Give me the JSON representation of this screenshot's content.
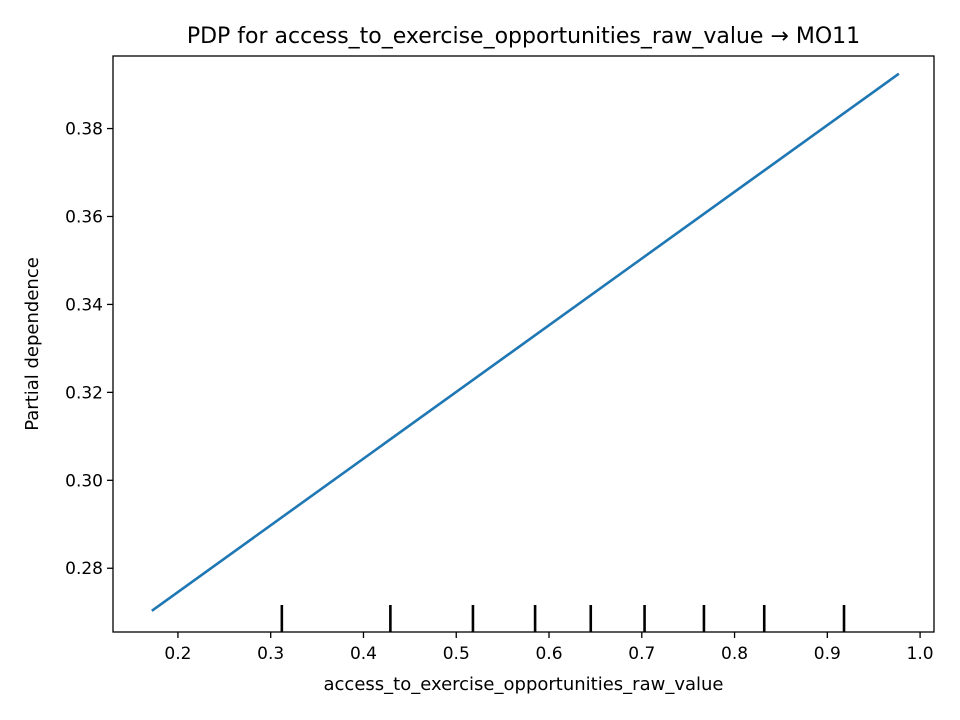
{
  "chart_data": {
    "type": "line",
    "title": "PDP for access_to_exercise_opportunities_raw_value → MO11",
    "xlabel": "access_to_exercise_opportunities_raw_value",
    "ylabel": "Partial dependence",
    "xlim": [
      0.13,
      1.015
    ],
    "ylim": [
      0.2655,
      0.3965
    ],
    "x_ticks": [
      0.2,
      0.3,
      0.4,
      0.5,
      0.6,
      0.7,
      0.8,
      0.9,
      1.0
    ],
    "x_tick_labels": [
      "0.2",
      "0.3",
      "0.4",
      "0.5",
      "0.6",
      "0.7",
      "0.8",
      "0.9",
      "1.0"
    ],
    "y_ticks": [
      0.28,
      0.3,
      0.32,
      0.34,
      0.36,
      0.38
    ],
    "y_tick_labels": [
      "0.28",
      "0.30",
      "0.32",
      "0.34",
      "0.36",
      "0.38"
    ],
    "grid": false,
    "series": [
      {
        "x": [
          0.173,
          0.976
        ],
        "y": [
          0.2705,
          0.3923
        ],
        "color": "#1f77b4"
      }
    ],
    "deciles": [
      0.312,
      0.429,
      0.518,
      0.585,
      0.645,
      0.703,
      0.767,
      0.832,
      0.918
    ],
    "decile_color": "#000000"
  }
}
